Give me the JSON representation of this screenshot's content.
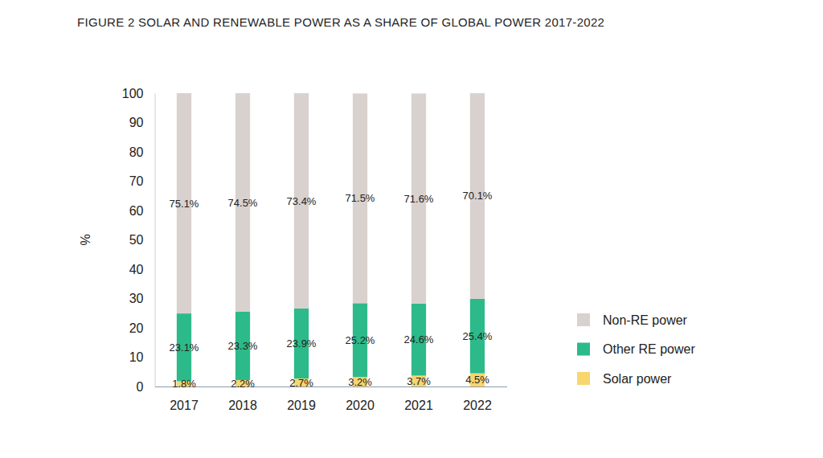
{
  "chart_data": {
    "type": "bar",
    "title": "FIGURE 2 SOLAR AND RENEWABLE POWER AS A SHARE OF GLOBAL POWER 2017-2022",
    "y_label": "%",
    "categories": [
      "2017",
      "2018",
      "2019",
      "2020",
      "2021",
      "2022"
    ],
    "series": [
      {
        "name": "Solar power",
        "color": "#f9d56e",
        "values": [
          1.8,
          2.2,
          2.7,
          3.2,
          3.7,
          4.5
        ],
        "value_labels": [
          "1.8%",
          "2.2%",
          "2.7%",
          "3.2%",
          "3.7%",
          "4.5%"
        ]
      },
      {
        "name": "Other RE power",
        "color": "#2dba8a",
        "values": [
          23.1,
          23.3,
          23.9,
          25.2,
          24.6,
          25.4
        ],
        "value_labels": [
          "23.1%",
          "23.3%",
          "23.9%",
          "25.2%",
          "24.6%",
          "25.4%"
        ]
      },
      {
        "name": "Non-RE power",
        "color": "#d8d1ce",
        "values": [
          75.1,
          74.5,
          73.4,
          71.5,
          71.6,
          70.1
        ],
        "value_labels": [
          "75.1%",
          "74.5%",
          "73.4%",
          "71.5%",
          "71.6%",
          "70.1%"
        ]
      }
    ],
    "stacked": true,
    "data_labels": true,
    "legend": "right",
    "grid": false,
    "ylim": [
      0,
      100
    ],
    "yticks": [
      0,
      10,
      20,
      30,
      40,
      50,
      60,
      70,
      80,
      90,
      100
    ]
  }
}
